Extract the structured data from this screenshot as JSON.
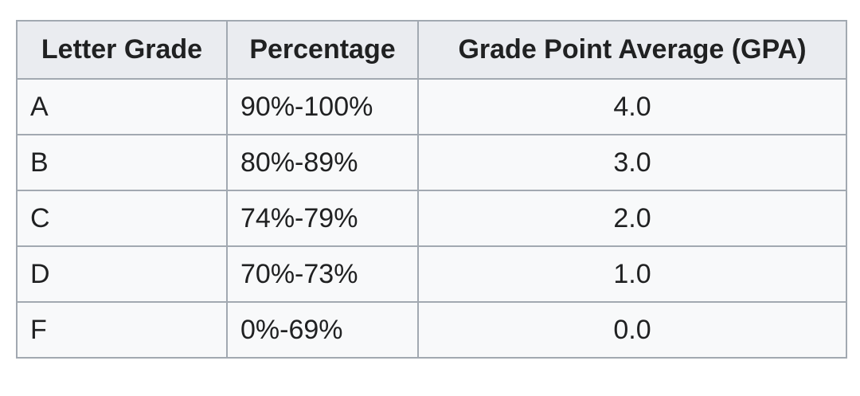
{
  "table": {
    "headers": [
      "Letter Grade",
      "Percentage",
      "Grade Point Average (GPA)"
    ],
    "rows": [
      [
        "A",
        "90%-100%",
        "4.0"
      ],
      [
        "B",
        "80%-89%",
        "3.0"
      ],
      [
        "C",
        "74%-79%",
        "2.0"
      ],
      [
        "D",
        "70%-73%",
        "1.0"
      ],
      [
        "F",
        "0%-69%",
        "0.0"
      ]
    ]
  }
}
